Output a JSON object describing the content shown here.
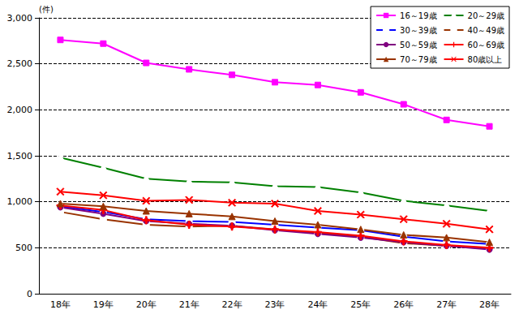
{
  "chart_data": {
    "type": "line",
    "y_label": "(件)",
    "categories": [
      "18年",
      "19年",
      "20年",
      "21年",
      "22年",
      "23年",
      "24年",
      "25年",
      "26年",
      "27年",
      "28年"
    ],
    "series": [
      {
        "name": "16～19歳",
        "color": "#ff00ff",
        "marker": "square",
        "values": [
          2760,
          2720,
          2510,
          2440,
          2380,
          2300,
          2270,
          2190,
          2060,
          1890,
          1820
        ]
      },
      {
        "name": "20～29歳",
        "color": "#008000",
        "marker": "triangle-open",
        "values": [
          1480,
          1370,
          1250,
          1220,
          1210,
          1170,
          1160,
          1100,
          1010,
          960,
          900
        ]
      },
      {
        "name": "30～39歳",
        "color": "#0000ff",
        "marker": "circle-open",
        "values": [
          950,
          890,
          810,
          790,
          780,
          750,
          720,
          690,
          620,
          570,
          540
        ]
      },
      {
        "name": "40～49歳",
        "color": "#993300",
        "marker": "square-open",
        "values": [
          890,
          810,
          750,
          730,
          740,
          700,
          660,
          620,
          550,
          520,
          490
        ]
      },
      {
        "name": "50～59歳",
        "color": "#800080",
        "marker": "circle",
        "values": [
          940,
          870,
          790,
          760,
          740,
          690,
          650,
          610,
          560,
          520,
          480
        ]
      },
      {
        "name": "60～69歳",
        "color": "#ff0000",
        "marker": "plus",
        "values": [
          960,
          910,
          800,
          750,
          730,
          700,
          670,
          630,
          570,
          530,
          500
        ]
      },
      {
        "name": "70～79歳",
        "color": "#993300",
        "marker": "triangle",
        "values": [
          980,
          950,
          900,
          870,
          840,
          790,
          750,
          700,
          640,
          610,
          560
        ]
      },
      {
        "name": "80歳以上",
        "color": "#ff0000",
        "marker": "x",
        "values": [
          1110,
          1070,
          1010,
          1020,
          990,
          980,
          900,
          860,
          810,
          760,
          700
        ]
      }
    ],
    "ylim": [
      0,
      3000
    ],
    "yticks": [
      0,
      500,
      {
        "value": 1000,
        "label": "1,000"
      },
      {
        "value": 1500,
        "label": "1,500"
      },
      {
        "value": 2000,
        "label": "2,000"
      },
      {
        "value": 2500,
        "label": "2,500"
      },
      {
        "value": 3000,
        "label": "3,000"
      }
    ],
    "grid": true,
    "legend": "top-right"
  }
}
